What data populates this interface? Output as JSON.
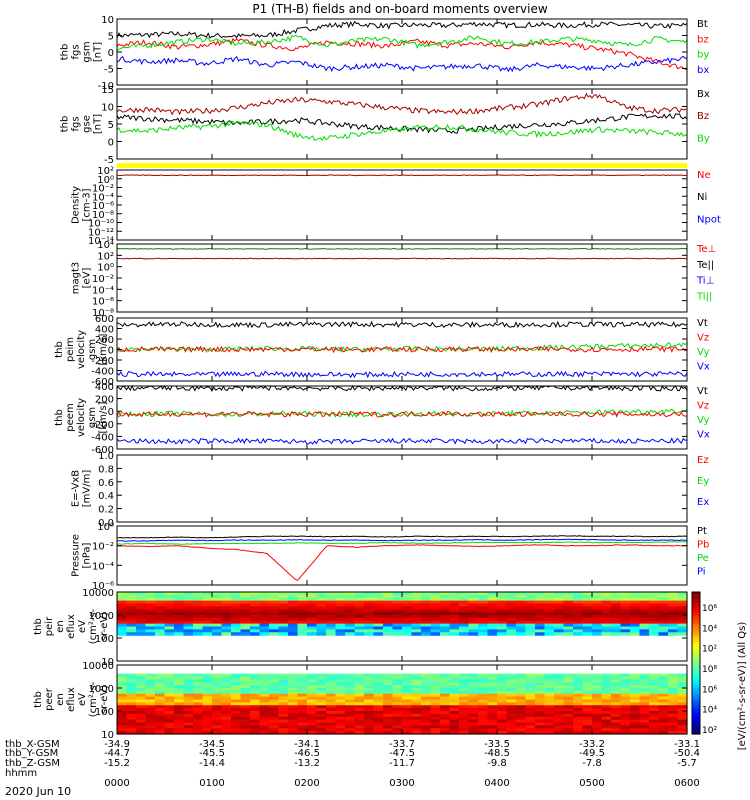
{
  "title": "P1 (TH-B) fields and on-board moments overview",
  "date_label": "2020 Jun 10",
  "colors": {
    "black": "#000000",
    "red": "#ff0000",
    "green": "#00dd00",
    "blue": "#0000ff",
    "darkred": "#a00000",
    "yellow": "#ffff00"
  },
  "chart_data": [
    {
      "type": "line",
      "id": "fgs_gsm",
      "ylabel_lines": [
        "thb",
        "fgs",
        "gsm",
        "[nT]"
      ],
      "yticks": [
        "10",
        "5",
        "0",
        "-5",
        "-10"
      ],
      "ylim": [
        -10,
        10
      ],
      "legend": [
        {
          "name": "Bt",
          "color": "#000000"
        },
        {
          "name": "bz",
          "color": "#ff0000"
        },
        {
          "name": "by",
          "color": "#00dd00"
        },
        {
          "name": "bx",
          "color": "#0000ff"
        }
      ],
      "series": [
        {
          "name": "Bt",
          "color": "#000000",
          "values": [
            5.0,
            5.2,
            5.5,
            5.0,
            4.8,
            5.0,
            6.5,
            8.0,
            8.5,
            7.9,
            8.2,
            8.0,
            8.6,
            8.1,
            8.3,
            8.0,
            8.4,
            8.2,
            7.8,
            8.1
          ]
        },
        {
          "name": "bz",
          "color": "#ff0000",
          "values": [
            2.0,
            3.0,
            1.5,
            2.2,
            3.5,
            2.0,
            1.0,
            3.0,
            2.5,
            1.8,
            3.2,
            2.0,
            2.6,
            1.5,
            3.0,
            2.2,
            1.0,
            -0.5,
            -3.0,
            -5.0
          ]
        },
        {
          "name": "by",
          "color": "#00dd00",
          "values": [
            1.0,
            2.0,
            3.0,
            4.0,
            2.5,
            3.0,
            4.5,
            2.0,
            3.5,
            4.0,
            2.0,
            3.0,
            4.5,
            2.5,
            3.0,
            4.0,
            3.5,
            2.0,
            4.0,
            3.0
          ]
        },
        {
          "name": "bx",
          "color": "#0000ff",
          "values": [
            -2.0,
            -3.0,
            -2.5,
            -3.5,
            -2.0,
            -4.0,
            -3.0,
            -5.0,
            -4.5,
            -4.0,
            -5.0,
            -4.5,
            -4.0,
            -5.5,
            -4.0,
            -4.5,
            -5.0,
            -4.0,
            -3.0,
            -2.0
          ]
        }
      ]
    },
    {
      "type": "line",
      "id": "fgs_gse",
      "ylabel_lines": [
        "thb",
        "fgs",
        "gse",
        "[nT]"
      ],
      "yticks": [
        "15",
        "10",
        "5",
        "0",
        "-5"
      ],
      "ylim": [
        -7.5,
        15
      ],
      "legend": [
        {
          "name": "Bx",
          "color": "#000000"
        },
        {
          "name": "Bz",
          "color": "#a00000"
        },
        {
          "name": "By",
          "color": "#00dd00"
        }
      ],
      "series": [
        {
          "name": "Bx",
          "color": "#000000",
          "values": [
            6.0,
            5.5,
            5.0,
            4.5,
            4.0,
            4.5,
            5.0,
            4.0,
            3.0,
            2.5,
            2.0,
            1.5,
            2.0,
            3.0,
            3.5,
            4.0,
            5.0,
            6.0,
            6.5,
            6.0
          ]
        },
        {
          "name": "Bz",
          "color": "#a00000",
          "values": [
            8.0,
            8.5,
            7.5,
            8.0,
            9.0,
            10.5,
            11.5,
            11.0,
            10.0,
            9.0,
            8.0,
            7.5,
            8.0,
            9.0,
            10.0,
            12.0,
            13.0,
            9.0,
            8.0,
            8.5
          ]
        },
        {
          "name": "By",
          "color": "#00dd00",
          "values": [
            2.0,
            1.5,
            2.5,
            3.0,
            4.0,
            3.5,
            0.0,
            -1.0,
            0.5,
            1.5,
            2.5,
            3.0,
            2.0,
            1.0,
            0.5,
            1.0,
            2.0,
            1.5,
            1.0,
            0.5
          ]
        }
      ]
    },
    {
      "type": "line",
      "id": "density",
      "scale": "log",
      "ylabel_lines": [
        "Density",
        "[cm-3]"
      ],
      "yticks": [
        "10²",
        "10⁰",
        "10⁻²",
        "10⁻⁴",
        "10⁻⁶",
        "10⁻⁸",
        "10⁻¹⁰",
        "10⁻¹²",
        "10⁻¹⁴"
      ],
      "ylim": [
        -14,
        2
      ],
      "legend": [
        {
          "name": "Ne",
          "color": "#ff0000"
        },
        {
          "name": "Ni",
          "color": "#000000"
        },
        {
          "name": "Npot",
          "color": "#0000ff"
        }
      ],
      "series": [
        {
          "name": "Ne",
          "color": "#a00000",
          "values": [
            0.8,
            0.8,
            0.8,
            0.8,
            0.8,
            0.8,
            0.8,
            0.8,
            0.8,
            0.8,
            0.8,
            0.8,
            0.8,
            0.8,
            0.8,
            0.8,
            0.8,
            0.8,
            0.8,
            0.8
          ]
        }
      ]
    },
    {
      "type": "line",
      "id": "temp",
      "scale": "log",
      "ylabel_lines": [
        "magt3",
        "[eV]"
      ],
      "yticks": [
        "10⁴",
        "10²",
        "10⁰",
        "10⁻²",
        "10⁻⁴",
        "10⁻⁶",
        "10⁻⁸"
      ],
      "ylim": [
        -9,
        5
      ],
      "legend": [
        {
          "name": "Te⊥",
          "color": "#ff0000"
        },
        {
          "name": "Te||",
          "color": "#000000"
        },
        {
          "name": "Ti⊥",
          "color": "#0000ff"
        },
        {
          "name": "Ti||",
          "color": "#00dd00"
        }
      ],
      "series": [
        {
          "name": "Ti||",
          "color": "#008800",
          "values": [
            4.0,
            4.0,
            4.0,
            4.0,
            4.0,
            4.0,
            4.0,
            4.0,
            4.0,
            4.0,
            4.0,
            4.0,
            4.0,
            4.0,
            4.0,
            4.0,
            4.0,
            4.0,
            4.0,
            4.0
          ]
        },
        {
          "name": "Te⊥",
          "color": "#a00000",
          "values": [
            2.0,
            2.0,
            2.0,
            2.0,
            2.0,
            2.0,
            2.0,
            2.0,
            2.0,
            2.0,
            2.0,
            2.0,
            2.0,
            2.0,
            2.0,
            2.0,
            2.0,
            2.0,
            2.0,
            2.0
          ]
        }
      ]
    },
    {
      "type": "line",
      "id": "peim_vel",
      "ylabel_lines": [
        "thb",
        "peim",
        "velocity",
        "gsm",
        "[km/s]"
      ],
      "yticks": [
        "600",
        "400",
        "200",
        "0",
        "-200",
        "-400",
        "-600"
      ],
      "ylim": [
        -600,
        600
      ],
      "legend": [
        {
          "name": "Vt",
          "color": "#000000"
        },
        {
          "name": "Vz",
          "color": "#ff0000"
        },
        {
          "name": "Vy",
          "color": "#00dd00"
        },
        {
          "name": "Vx",
          "color": "#0000ff"
        }
      ],
      "series": [
        {
          "name": "Vt",
          "color": "#000000",
          "values": [
            470,
            475,
            480,
            478,
            472,
            470,
            476,
            480,
            482,
            478,
            475,
            470,
            468,
            472,
            476,
            480,
            478,
            475,
            472,
            470
          ]
        },
        {
          "name": "Vy",
          "color": "#00dd00",
          "values": [
            10,
            15,
            5,
            0,
            10,
            20,
            15,
            5,
            0,
            10,
            15,
            10,
            5,
            20,
            30,
            40,
            60,
            70,
            80,
            90
          ]
        },
        {
          "name": "Vz",
          "color": "#ff0000",
          "values": [
            0,
            5,
            -5,
            10,
            0,
            5,
            10,
            0,
            -5,
            5,
            0,
            10,
            5,
            0,
            5,
            10,
            0,
            5,
            10,
            5
          ]
        },
        {
          "name": "Vx",
          "color": "#0000ff",
          "values": [
            -470,
            -472,
            -475,
            -478,
            -470,
            -465,
            -472,
            -476,
            -480,
            -475,
            -470,
            -468,
            -465,
            -470,
            -472,
            -468,
            -465,
            -470,
            -468,
            -465
          ]
        }
      ]
    },
    {
      "type": "line",
      "id": "peem_vel",
      "ylabel_lines": [
        "thb",
        "peem",
        "velocity",
        "gsm",
        "[km/s]"
      ],
      "yticks": [
        "400",
        "200",
        "0",
        "-200",
        "-400",
        "-600"
      ],
      "ylim": [
        -600,
        500
      ],
      "legend": [
        {
          "name": "Vt",
          "color": "#000000"
        },
        {
          "name": "Vz",
          "color": "#ff0000"
        },
        {
          "name": "Vy",
          "color": "#00dd00"
        },
        {
          "name": "Vx",
          "color": "#0000ff"
        }
      ],
      "series": [
        {
          "name": "Vt",
          "color": "#000000",
          "values": [
            460,
            465,
            470,
            455,
            460,
            470,
            468,
            462,
            458,
            465,
            470,
            460,
            455,
            462,
            468,
            470,
            465,
            460,
            458,
            462
          ]
        },
        {
          "name": "Vy",
          "color": "#00dd00",
          "values": [
            0,
            10,
            20,
            10,
            0,
            15,
            20,
            10,
            0,
            10,
            20,
            15,
            10,
            20,
            25,
            30,
            40,
            50,
            60,
            70
          ]
        },
        {
          "name": "Vz",
          "color": "#ff0000",
          "values": [
            10,
            0,
            15,
            5,
            20,
            0,
            10,
            5,
            15,
            0,
            10,
            20,
            5,
            10,
            0,
            15,
            5,
            10,
            0,
            5
          ]
        },
        {
          "name": "Vx",
          "color": "#0000ff",
          "values": [
            -460,
            -465,
            -470,
            -462,
            -458,
            -465,
            -470,
            -475,
            -470,
            -462,
            -458,
            -465,
            -470,
            -466,
            -460,
            -458,
            -462,
            -465,
            -460,
            -458
          ]
        }
      ]
    },
    {
      "type": "line",
      "id": "efield",
      "ylabel_lines": [
        "E=-VxB",
        "[mV/m]"
      ],
      "yticks": [
        "1.0",
        "0.8",
        "0.6",
        "0.4",
        "0.2",
        "0.0"
      ],
      "ylim": [
        0,
        1
      ],
      "legend": [
        {
          "name": "Ez",
          "color": "#ff0000"
        },
        {
          "name": "Ey",
          "color": "#00dd00"
        },
        {
          "name": "Ex",
          "color": "#0000ff"
        }
      ],
      "series": []
    },
    {
      "type": "line",
      "id": "pressure",
      "scale": "log",
      "ylabel_lines": [
        "Pressure",
        "[nPa]"
      ],
      "yticks": [
        "10⁰",
        "10⁻²",
        "10⁻⁴",
        "10⁻⁶"
      ],
      "ylim": [
        -7,
        0.5
      ],
      "legend": [
        {
          "name": "Pt",
          "color": "#000000"
        },
        {
          "name": "Pb",
          "color": "#ff0000"
        },
        {
          "name": "Pe",
          "color": "#00dd00"
        },
        {
          "name": "Pi",
          "color": "#0000ff"
        }
      ],
      "series": [
        {
          "name": "Pt",
          "color": "#000000",
          "values": [
            -1.0,
            -1.0,
            -0.9,
            -1.0,
            -0.9,
            -0.8,
            -0.8,
            -0.85,
            -0.8,
            -0.9,
            -0.8,
            -0.85,
            -0.8,
            -0.85,
            -0.8,
            -0.75,
            -0.8,
            -0.8,
            -0.85,
            -0.8
          ]
        },
        {
          "name": "Pi",
          "color": "#0000ff",
          "values": [
            -1.4,
            -1.4,
            -1.3,
            -1.35,
            -1.3,
            -1.3,
            -1.25,
            -1.3,
            -1.3,
            -1.35,
            -1.3,
            -1.3,
            -1.25,
            -1.3,
            -1.25,
            -1.2,
            -1.25,
            -1.3,
            -1.3,
            -1.3
          ]
        },
        {
          "name": "Pe",
          "color": "#00dd00",
          "values": [
            -1.8,
            -1.7,
            -1.8,
            -1.75,
            -1.7,
            -1.7,
            -1.65,
            -1.7,
            -1.7,
            -1.6,
            -1.7,
            -1.65,
            -1.6,
            -1.6,
            -1.6,
            -1.55,
            -1.6,
            -1.6,
            -1.55,
            -1.5
          ]
        },
        {
          "name": "Pb",
          "color": "#ff0000",
          "values": [
            -2.0,
            -2.1,
            -2.0,
            -2.3,
            -2.5,
            -3.0,
            -6.5,
            -2.0,
            -2.2,
            -2.0,
            -1.9,
            -2.0,
            -2.1,
            -2.0,
            -1.9,
            -2.0,
            -2.0,
            -1.9,
            -2.0,
            -2.0
          ]
        }
      ]
    },
    {
      "type": "heatmap",
      "id": "peir",
      "ylabel_lines": [
        "thb",
        "peir",
        "en",
        "eflux",
        "eV",
        "(cm²-s-",
        "sr-eV)"
      ],
      "yticks": [
        "10000",
        "1000",
        "100",
        "10"
      ],
      "ylim": [
        1,
        4.3
      ]
    },
    {
      "type": "heatmap",
      "id": "peer",
      "ylabel_lines": [
        "thb",
        "peer",
        "en",
        "eflux",
        "eV",
        "(cm²-s-",
        "sr-eV)"
      ],
      "yticks": [
        "10000",
        "1000",
        "100",
        "10"
      ],
      "ylim": [
        0.7,
        4.3
      ]
    }
  ],
  "colorbar": {
    "ticks": [
      "10⁶",
      "10⁴",
      "10²",
      "10⁸",
      "10⁶",
      "10⁴",
      "10²"
    ],
    "label": "[eV/(cm²-s-sr-eV)] (All Qs)"
  },
  "x_axis": {
    "time_ticks": [
      "0000",
      "0100",
      "0200",
      "0300",
      "0400",
      "0500",
      "0600"
    ],
    "rows": [
      {
        "label": "thb_X-GSM",
        "values": [
          "-34.9",
          "-34.5",
          "-34.1",
          "-33.7",
          "-33.5",
          "-33.2",
          "-33.1"
        ]
      },
      {
        "label": "thb_Y-GSM",
        "values": [
          "-44.7",
          "-45.5",
          "-46.5",
          "-47.5",
          "-48.5",
          "-49.5",
          "-50.4"
        ]
      },
      {
        "label": "thb_Z-GSM",
        "values": [
          "-15.2",
          "-14.4",
          "-13.2",
          "-11.7",
          "-9.8",
          "-7.8",
          "-5.7"
        ]
      },
      {
        "label": "hhmm",
        "values": []
      }
    ]
  }
}
